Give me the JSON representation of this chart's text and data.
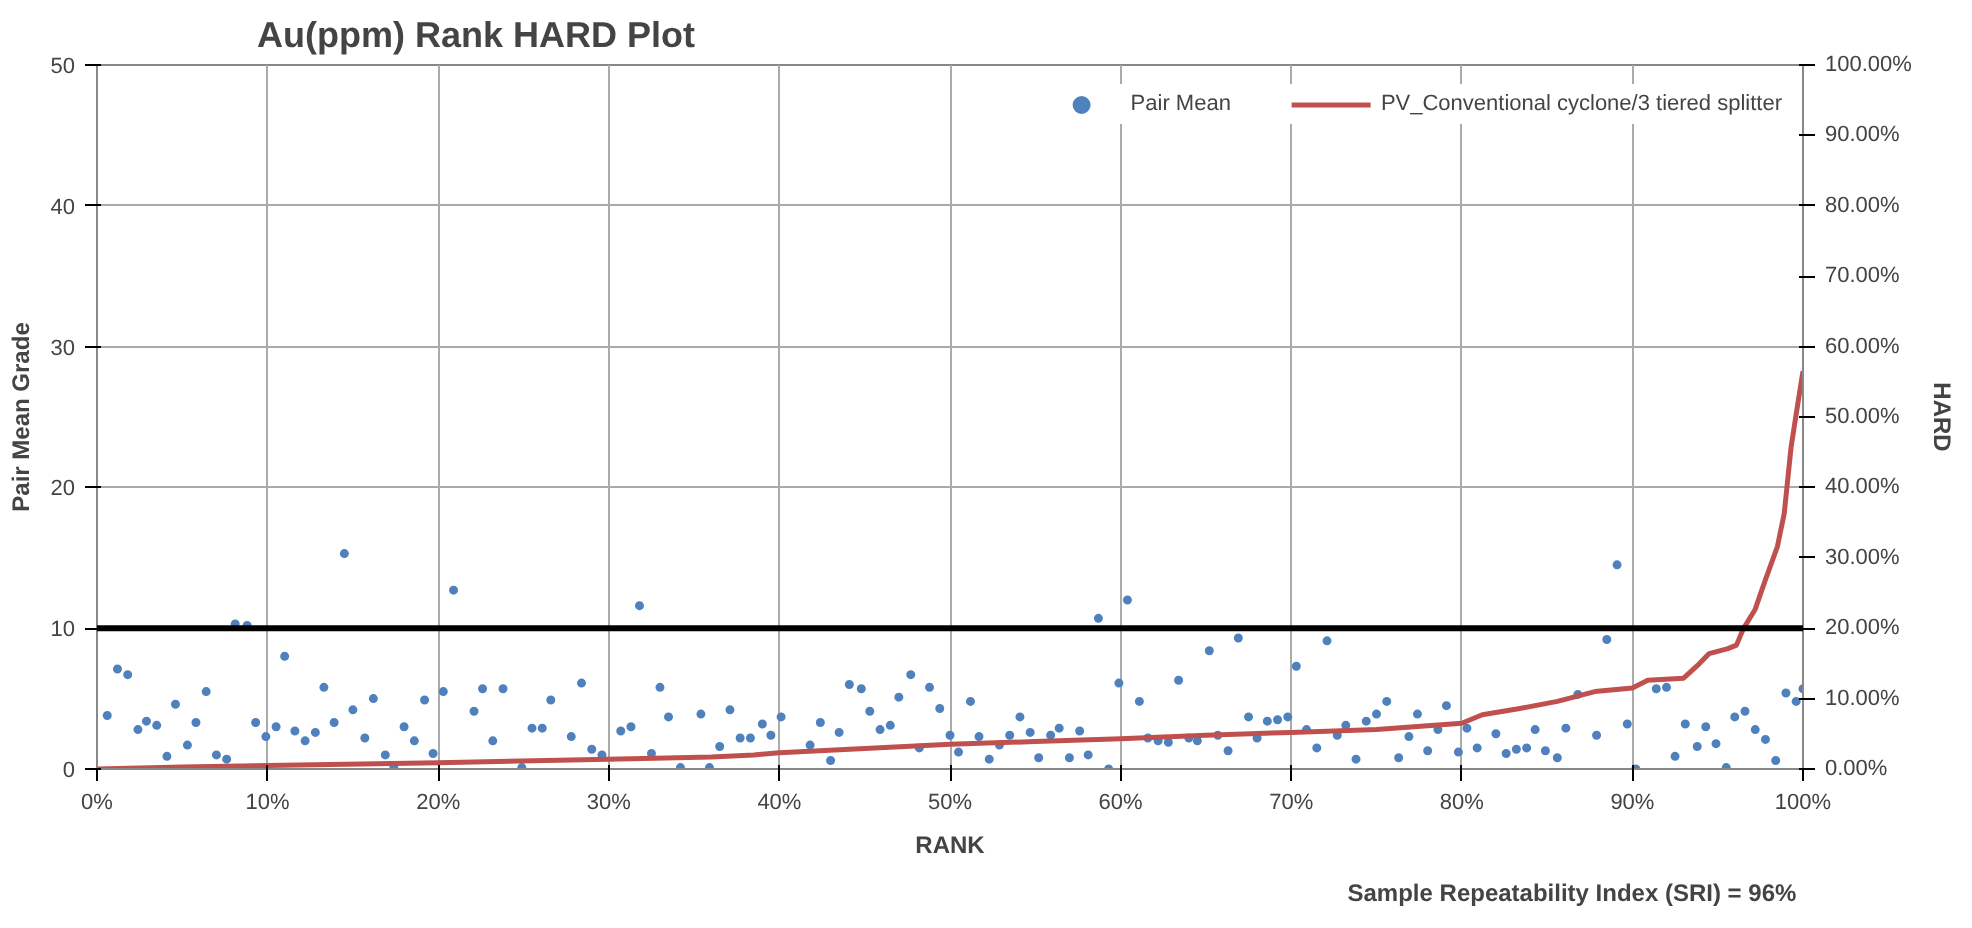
{
  "chart_data": {
    "type": "scatter",
    "title": "Au(ppm)  Rank HARD Plot",
    "xlabel": "RANK",
    "ylabel": "Pair Mean Grade",
    "y2label": "HARD",
    "xlim": [
      0,
      100
    ],
    "xticks": [
      {
        "value": 0,
        "label": "0%"
      },
      {
        "value": 10,
        "label": "10%"
      },
      {
        "value": 20,
        "label": "20%"
      },
      {
        "value": 30,
        "label": "30%"
      },
      {
        "value": 40,
        "label": "40%"
      },
      {
        "value": 50,
        "label": "50%"
      },
      {
        "value": 60,
        "label": "60%"
      },
      {
        "value": 70,
        "label": "70%"
      },
      {
        "value": 80,
        "label": "80%"
      },
      {
        "value": 90,
        "label": "90%"
      },
      {
        "value": 100,
        "label": "100%"
      }
    ],
    "ylim": [
      0,
      50
    ],
    "yticks": [
      0,
      10,
      20,
      30,
      40,
      50
    ],
    "y2lim": [
      0,
      100
    ],
    "y2ticks": [
      {
        "value": 0,
        "label": "0.00%"
      },
      {
        "value": 10,
        "label": "10.00%"
      },
      {
        "value": 20,
        "label": "20.00%"
      },
      {
        "value": 30,
        "label": "30.00%"
      },
      {
        "value": 40,
        "label": "40.00%"
      },
      {
        "value": 50,
        "label": "50.00%"
      },
      {
        "value": 60,
        "label": "60.00%"
      },
      {
        "value": 70,
        "label": "70.00%"
      },
      {
        "value": 80,
        "label": "80.00%"
      },
      {
        "value": 90,
        "label": "90.00%"
      },
      {
        "value": 100,
        "label": "100.00%"
      }
    ],
    "grid": true,
    "legend": "top right",
    "ref_lines": [
      {
        "axis": "y",
        "value": 10,
        "color": "#000000"
      }
    ],
    "annotations": [
      "Sample Repeatability  Index (SRI) = 96%"
    ],
    "series": [
      {
        "name": "Pair Mean",
        "marker": "circle",
        "color": "#4f81bd",
        "x": [
          0.6,
          1.2,
          1.8,
          2.4,
          2.9,
          3.5,
          4.1,
          4.6,
          5.3,
          5.8,
          6.4,
          7.0,
          7.6,
          8.1,
          8.8,
          9.3,
          9.9,
          10.5,
          11.0,
          11.6,
          12.2,
          12.8,
          13.3,
          13.9,
          14.5,
          15.0,
          15.7,
          16.2,
          16.9,
          17.4,
          18.0,
          18.6,
          19.2,
          19.7,
          20.3,
          20.9,
          22.1,
          22.6,
          23.2,
          23.8,
          24.9,
          25.5,
          26.1,
          26.6,
          27.8,
          28.4,
          29.0,
          29.6,
          30.7,
          31.3,
          31.8,
          32.5,
          33.0,
          33.5,
          34.2,
          35.4,
          35.9,
          36.5,
          37.1,
          37.7,
          38.3,
          39.0,
          39.5,
          40.1,
          41.8,
          42.4,
          43.0,
          43.5,
          44.1,
          44.8,
          45.3,
          45.9,
          46.5,
          47.0,
          47.7,
          48.2,
          48.8,
          49.4,
          50.0,
          50.5,
          51.2,
          51.7,
          52.3,
          52.9,
          53.5,
          54.1,
          54.7,
          55.2,
          55.9,
          56.4,
          57.0,
          57.6,
          58.1,
          58.7,
          59.3,
          59.9,
          60.4,
          61.1,
          61.6,
          62.2,
          62.8,
          63.4,
          64.0,
          64.5,
          65.2,
          65.7,
          66.3,
          66.9,
          67.5,
          68.0,
          68.6,
          69.2,
          69.8,
          70.3,
          70.9,
          71.5,
          72.1,
          72.7,
          73.2,
          73.8,
          74.4,
          75.0,
          75.6,
          76.3,
          76.9,
          77.4,
          78.0,
          78.6,
          79.1,
          79.8,
          80.3,
          80.9,
          82.0,
          82.6,
          83.2,
          83.8,
          84.3,
          84.9,
          85.6,
          86.1,
          86.8,
          87.9,
          88.5,
          89.1,
          89.7,
          90.2,
          91.4,
          92.0,
          92.5,
          93.1,
          93.8,
          94.3,
          94.9,
          95.5,
          96.0,
          96.6,
          97.2,
          97.8,
          98.4,
          99.0,
          99.6,
          100
        ],
        "values": [
          3.8,
          7.1,
          6.7,
          2.8,
          3.4,
          3.1,
          0.9,
          4.6,
          1.7,
          3.3,
          5.5,
          1.0,
          0.7,
          10.3,
          10.2,
          3.3,
          2.3,
          3.0,
          8.0,
          2.7,
          2.0,
          2.6,
          5.8,
          3.3,
          15.3,
          4.2,
          2.2,
          5.0,
          1.0,
          0.2,
          3.0,
          2.0,
          4.9,
          1.1,
          5.5,
          12.7,
          4.1,
          5.7,
          2.0,
          5.7,
          0.1,
          2.9,
          2.9,
          4.9,
          2.3,
          6.1,
          1.4,
          1.0,
          2.7,
          3.0,
          11.6,
          1.1,
          5.8,
          3.7,
          0.1,
          3.9,
          0.1,
          1.6,
          4.2,
          2.2,
          2.2,
          3.2,
          2.4,
          3.7,
          1.7,
          3.3,
          0.6,
          2.6,
          6.0,
          5.7,
          4.1,
          2.8,
          3.1,
          5.1,
          6.7,
          1.5,
          5.8,
          4.3,
          2.4,
          1.2,
          4.8,
          2.3,
          0.7,
          1.7,
          2.4,
          3.7,
          2.6,
          0.8,
          2.4,
          2.9,
          0.8,
          2.7,
          1.0,
          10.7,
          0.0,
          6.1,
          12.0,
          4.8,
          2.2,
          2.0,
          1.9,
          6.3,
          2.2,
          2.0,
          8.4,
          2.4,
          1.3,
          9.3,
          3.7,
          2.2,
          3.4,
          3.5,
          3.7,
          7.3,
          2.8,
          1.5,
          9.1,
          2.4,
          3.1,
          0.7,
          3.4,
          3.9,
          4.8,
          0.8,
          2.3,
          3.9,
          1.3,
          2.8,
          4.5,
          1.2,
          2.9,
          1.5,
          2.5,
          1.1,
          1.4,
          1.5,
          2.8,
          1.3,
          0.8,
          2.9,
          5.3,
          2.4,
          9.2,
          14.5,
          3.2,
          0.0,
          5.7,
          5.8,
          0.9,
          3.2,
          1.6,
          3.0,
          1.8,
          0.1,
          3.7,
          4.1,
          2.8,
          2.1,
          0.6,
          5.4,
          4.8,
          5.7
        ]
      },
      {
        "name": "PV_Conventional cyclone/3 tiered splitter",
        "type": "line",
        "axis": "y2",
        "color": "#c0504d",
        "line_style": "solid",
        "x": [
          0,
          5,
          10,
          20,
          30,
          36,
          38.5,
          40,
          45,
          50,
          55,
          60,
          65,
          70,
          75,
          80,
          81.2,
          83.4,
          85.6,
          87.8,
          90,
          90.9,
          93,
          93.9,
          94.5,
          95.6,
          96.1,
          96.5,
          97.2,
          97.8,
          98.5,
          98.9,
          99.3,
          99.6,
          100
        ],
        "values": [
          0,
          0.3,
          0.5,
          0.9,
          1.4,
          1.7,
          2.0,
          2.3,
          2.9,
          3.5,
          3.9,
          4.3,
          4.8,
          5.2,
          5.6,
          6.5,
          7.7,
          8.6,
          9.6,
          11.0,
          11.5,
          12.6,
          12.9,
          14.9,
          16.4,
          17.1,
          17.6,
          19.9,
          22.7,
          26.9,
          31.6,
          36.3,
          45.7,
          50.4,
          56.5
        ]
      }
    ]
  }
}
